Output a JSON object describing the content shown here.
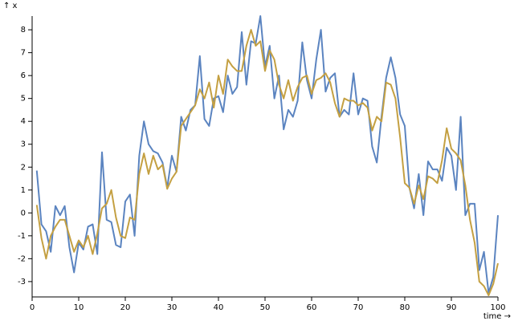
{
  "chart_data": {
    "type": "line",
    "y_label": "↑ x",
    "x_label": "time →",
    "x": [
      1,
      2,
      3,
      4,
      5,
      6,
      7,
      8,
      9,
      10,
      11,
      12,
      13,
      14,
      15,
      16,
      17,
      18,
      19,
      20,
      21,
      22,
      23,
      24,
      25,
      26,
      27,
      28,
      29,
      30,
      31,
      32,
      33,
      34,
      35,
      36,
      37,
      38,
      39,
      40,
      41,
      42,
      43,
      44,
      45,
      46,
      47,
      48,
      49,
      50,
      51,
      52,
      53,
      54,
      55,
      56,
      57,
      58,
      59,
      60,
      61,
      62,
      63,
      64,
      65,
      66,
      67,
      68,
      69,
      70,
      71,
      72,
      73,
      74,
      75,
      76,
      77,
      78,
      79,
      80,
      81,
      82,
      83,
      84,
      85,
      86,
      87,
      88,
      89,
      90,
      91,
      92,
      93,
      94,
      95,
      96,
      97,
      98,
      99,
      100
    ],
    "series": [
      {
        "color": "#5b84c0",
        "values": [
          1.85,
          -0.5,
          -0.8,
          -1.7,
          0.3,
          -0.1,
          0.3,
          -1.5,
          -2.6,
          -1.3,
          -1.6,
          -0.6,
          -0.5,
          -1.8,
          2.65,
          -0.3,
          -0.4,
          -1.4,
          -1.5,
          0.5,
          0.8,
          -1.0,
          2.5,
          4.0,
          3.0,
          2.7,
          2.6,
          2.2,
          1.1,
          2.5,
          1.8,
          4.2,
          3.6,
          4.5,
          4.7,
          6.85,
          4.1,
          3.8,
          5.0,
          5.1,
          4.4,
          6.0,
          5.2,
          5.5,
          7.9,
          5.6,
          7.5,
          7.4,
          8.6,
          6.4,
          7.3,
          5.0,
          6.0,
          3.65,
          4.5,
          4.2,
          4.9,
          7.45,
          5.8,
          5.0,
          6.7,
          8.0,
          5.3,
          5.9,
          6.1,
          4.2,
          4.5,
          4.3,
          6.1,
          4.3,
          5.0,
          4.9,
          2.9,
          2.2,
          4.2,
          5.9,
          6.8,
          5.9,
          4.3,
          3.8,
          1.1,
          0.2,
          1.7,
          -0.1,
          2.25,
          1.9,
          1.9,
          1.4,
          2.85,
          2.5,
          1.0,
          4.2,
          -0.1,
          0.4,
          0.4,
          -2.5,
          -1.7,
          -3.5,
          -2.8,
          -0.1
        ]
      },
      {
        "color": "#c4a042",
        "values": [
          0.35,
          -1.1,
          -2.0,
          -1.0,
          -0.6,
          -0.3,
          -0.3,
          -1.0,
          -1.7,
          -1.2,
          -1.5,
          -1.0,
          -1.8,
          -0.9,
          0.2,
          0.4,
          1.0,
          -0.2,
          -1.0,
          -1.1,
          -0.2,
          -0.3,
          1.7,
          2.6,
          1.7,
          2.5,
          1.9,
          2.1,
          1.05,
          1.5,
          1.8,
          3.8,
          4.1,
          4.4,
          4.7,
          5.4,
          5.0,
          5.7,
          4.6,
          6.0,
          5.2,
          6.7,
          6.4,
          6.2,
          6.2,
          7.3,
          8.0,
          7.3,
          7.5,
          6.2,
          7.1,
          6.7,
          5.6,
          5.0,
          5.8,
          4.9,
          5.5,
          5.9,
          6.0,
          5.2,
          5.8,
          5.9,
          6.1,
          5.7,
          4.8,
          4.2,
          5.0,
          4.9,
          4.9,
          4.7,
          4.8,
          4.6,
          3.6,
          4.2,
          4.0,
          5.7,
          5.6,
          5.0,
          3.3,
          1.3,
          1.1,
          0.4,
          1.2,
          0.6,
          1.6,
          1.5,
          1.3,
          2.3,
          3.7,
          2.8,
          2.6,
          2.3,
          1.2,
          -0.3,
          -1.3,
          -3.0,
          -3.2,
          -3.6,
          -3.1,
          -2.2
        ]
      }
    ],
    "xlim": [
      0,
      100
    ],
    "xticks": [
      0,
      10,
      20,
      30,
      40,
      50,
      60,
      70,
      80,
      90,
      100
    ],
    "ylim": [
      -3.6,
      8.6
    ],
    "yticks": [
      -3,
      -2,
      -1,
      0,
      1,
      2,
      3,
      4,
      5,
      6,
      7,
      8
    ]
  }
}
